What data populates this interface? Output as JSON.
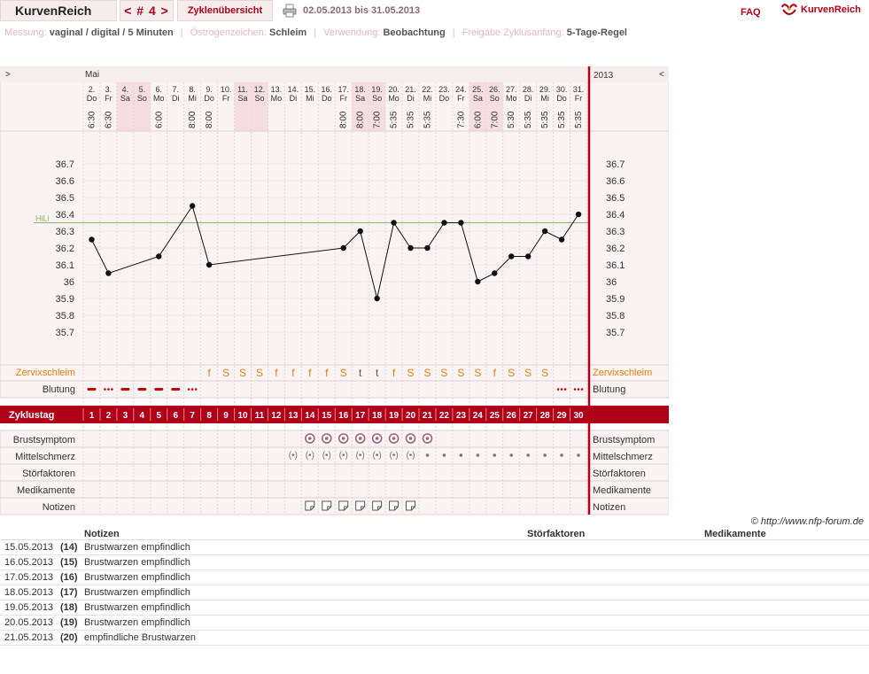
{
  "header": {
    "logo": "KurvenReich",
    "cycle": "< # 4 >",
    "overview": "Zyklenübersicht",
    "date_range": "02.05.2013 bis 31.05.2013",
    "faq": "FAQ",
    "brand": "KurvenReich"
  },
  "info": {
    "measure_label": "Messung:",
    "measure_value": "vaginal / digital / 5 Minuten",
    "estrogen_label": "Östrogenzeichen:",
    "estrogen_value": "Schleim",
    "usage_label": "Verwendung:",
    "usage_value": "Beobachtung",
    "release_label": "Freigabe Zyklusanfang:",
    "release_value": "5-Tage-Regel"
  },
  "chart_data": {
    "type": "line",
    "month_label": "Mai",
    "year_label": "2013",
    "nav_left": ">",
    "nav_right": "<",
    "dates": [
      "2.",
      "3.",
      "4.",
      "5.",
      "6.",
      "7.",
      "8.",
      "9.",
      "10.",
      "11.",
      "12.",
      "13.",
      "14.",
      "15.",
      "16.",
      "17.",
      "18.",
      "19.",
      "20.",
      "21.",
      "22.",
      "23.",
      "24.",
      "25.",
      "26.",
      "27.",
      "28.",
      "29.",
      "30.",
      "31."
    ],
    "weekdays": [
      "Do",
      "Fr",
      "Sa",
      "So",
      "Mo",
      "Di",
      "Mi",
      "Do",
      "Fr",
      "Sa",
      "So",
      "Mo",
      "Di",
      "Mi",
      "Do",
      "Fr",
      "Sa",
      "So",
      "Mo",
      "Di",
      "Mi",
      "Do",
      "Fr",
      "Sa",
      "So",
      "Mo",
      "Di",
      "Mi",
      "Do",
      "Fr"
    ],
    "times": [
      "6:30",
      "6:30",
      "",
      "",
      "6:00",
      "",
      "8:00",
      "8:00",
      "",
      "",
      "",
      "",
      "",
      "",
      "",
      "8:00",
      "8:00",
      "7:00",
      "5:35",
      "5:35",
      "5:35",
      "",
      "7:30",
      "6:00",
      "7:00",
      "5:30",
      "5:35",
      "5:35",
      "5:35",
      "5:35"
    ],
    "temperatures": [
      36.25,
      36.05,
      null,
      null,
      36.15,
      null,
      36.45,
      36.1,
      null,
      null,
      null,
      null,
      null,
      null,
      null,
      36.2,
      36.3,
      35.9,
      36.35,
      36.2,
      36.2,
      36.35,
      36.35,
      36.0,
      36.05,
      36.15,
      36.15,
      36.3,
      36.25,
      36.4
    ],
    "y_ticks": [
      36.7,
      36.6,
      36.5,
      36.4,
      36.3,
      36.2,
      36.1,
      36,
      35.9,
      35.8,
      35.7
    ],
    "ylim": [
      35.6,
      36.8
    ],
    "hili_label": "HiLi",
    "hili_value": 36.35,
    "cycle_label": "Zyklustag",
    "cycle_days": [
      "1",
      "2",
      "3",
      "4",
      "5",
      "6",
      "7",
      "8",
      "9",
      "10",
      "11",
      "12",
      "13",
      "14",
      "15",
      "16",
      "17",
      "18",
      "19",
      "20",
      "21",
      "22",
      "23",
      "24",
      "25",
      "26",
      "27",
      "28",
      "29",
      "30"
    ],
    "rows": {
      "cervix": "Zervixschleim",
      "bleeding": "Blutung",
      "breast": "Brustsymptom",
      "midpain": "Mittelschmerz",
      "disturb": "Störfaktoren",
      "meds": "Medikamente",
      "notes": "Notizen"
    },
    "cervix_values": [
      "",
      "",
      "",
      "",
      "",
      "",
      "",
      "f",
      "S",
      "S",
      "S",
      "f",
      "f",
      "f",
      "f",
      "S",
      "t",
      "t",
      "f",
      "S",
      "S",
      "S",
      "S",
      "S",
      "f",
      "S",
      "S",
      "S",
      "",
      ""
    ],
    "bleeding_values": [
      "heavy",
      "medium",
      "heavy",
      "heavy",
      "heavy",
      "heavy",
      "medium",
      "",
      "",
      "",
      "",
      "",
      "",
      "",
      "",
      "",
      "",
      "",
      "",
      "",
      "",
      "",
      "",
      "",
      "",
      "",
      "",
      "",
      "medium",
      "medium"
    ],
    "breast_days": [
      14,
      15,
      16,
      17,
      18,
      19,
      20,
      21
    ],
    "midpain_strong_days": [
      13,
      14,
      15,
      16,
      17,
      18,
      19,
      20
    ],
    "midpain_dot_days": [
      21,
      22,
      23,
      24,
      25,
      26,
      27,
      28,
      29,
      30
    ],
    "note_days": [
      14,
      15,
      16,
      17,
      18,
      19,
      20
    ],
    "colors": {
      "accent": "#b00019",
      "cervix": "#e08010",
      "weekend": "#f5dde2",
      "hili": "#8fb06a",
      "bleeding": "#cc0000"
    }
  },
  "copyright": "© http://www.nfp-forum.de",
  "notes_table": {
    "headers": {
      "notes": "Notizen",
      "disturb": "Störfaktoren",
      "meds": "Medikamente"
    },
    "rows": [
      {
        "date": "15.05.2013",
        "day": "(14)",
        "note": "Brustwarzen empfindlich"
      },
      {
        "date": "16.05.2013",
        "day": "(15)",
        "note": "Brustwarzen empfindlich"
      },
      {
        "date": "17.05.2013",
        "day": "(16)",
        "note": "Brustwarzen empfindlich"
      },
      {
        "date": "18.05.2013",
        "day": "(17)",
        "note": "Brustwarzen empfindlich"
      },
      {
        "date": "19.05.2013",
        "day": "(18)",
        "note": "Brustwarzen empfindlich"
      },
      {
        "date": "20.05.2013",
        "day": "(19)",
        "note": "Brustwarzen empfindlich"
      },
      {
        "date": "21.05.2013",
        "day": "(20)",
        "note": "empfindliche Brustwarzen"
      }
    ]
  }
}
